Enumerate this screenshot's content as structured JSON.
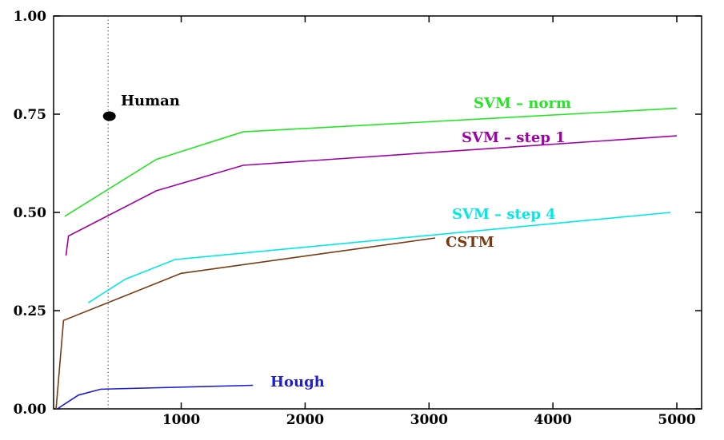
{
  "chart_data": {
    "type": "line",
    "title": "",
    "xlabel": "",
    "ylabel": "",
    "xlim": [
      -30,
      5200
    ],
    "ylim": [
      0,
      1.0
    ],
    "x_ticks": [
      1000,
      2000,
      3000,
      4000,
      5000
    ],
    "x_tick_labels": [
      "1000",
      "2000",
      "3000",
      "4000",
      "5000"
    ],
    "y_ticks": [
      0,
      0.25,
      0.5,
      0.75,
      1.0
    ],
    "y_tick_labels": [
      "0.00",
      "0.25",
      "0.50",
      "0.75",
      "1.00"
    ],
    "grid": false,
    "reference_line": {
      "x": 410,
      "style": "dotted"
    },
    "series": [
      {
        "name": "SVM – norm",
        "color": "#22e622",
        "x": [
          60,
          800,
          1500,
          5000
        ],
        "y": [
          0.49,
          0.635,
          0.705,
          0.765
        ]
      },
      {
        "name": "SVM – step 1",
        "color": "#a000a8",
        "x": [
          70,
          90,
          800,
          1500,
          5000
        ],
        "y": [
          0.39,
          0.44,
          0.555,
          0.62,
          0.695
        ]
      },
      {
        "name": "SVM – step 4",
        "color": "#00e8e8",
        "x": [
          250,
          550,
          950,
          4950
        ],
        "y": [
          0.27,
          0.33,
          0.38,
          0.5
        ]
      },
      {
        "name": "CSTM",
        "color": "#7a3a10",
        "x": [
          -10,
          50,
          1000,
          3050
        ],
        "y": [
          0.0,
          0.225,
          0.345,
          0.435
        ]
      },
      {
        "name": "Hough",
        "color": "#1e1ecc",
        "x": [
          0,
          170,
          350,
          1580
        ],
        "y": [
          0.0,
          0.035,
          0.05,
          0.06
        ]
      }
    ],
    "points": [
      {
        "name": "Human",
        "color": "#000000",
        "x": 420,
        "y": 0.745
      }
    ]
  }
}
